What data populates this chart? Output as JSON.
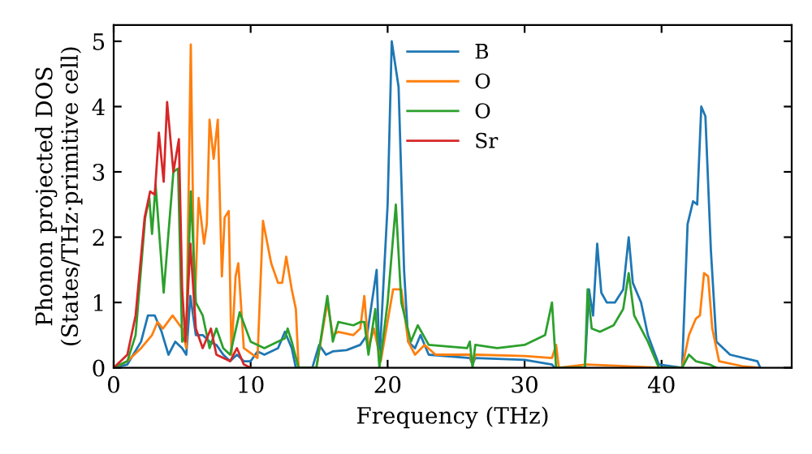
{
  "chart_data": {
    "type": "line",
    "xlabel": "Frequency (THz)",
    "ylabel": "Phonon projected DOS\n(States/THz·primitive cell)",
    "xlim": [
      0,
      49.5
    ],
    "ylim": [
      0,
      5.25
    ],
    "xticks": [
      0,
      10,
      20,
      30,
      40
    ],
    "yticks": [
      0,
      1,
      2,
      3,
      4,
      5
    ],
    "legend": "top",
    "grid": false,
    "marker": "none",
    "line_style": "solid",
    "series": [
      {
        "name": "B",
        "color": "#1f77b4",
        "x": [
          0,
          1,
          2,
          2.5,
          3,
          3.5,
          4,
          4.5,
          5,
          5.3,
          5.6,
          6,
          6.5,
          7,
          7.5,
          8,
          8.5,
          9,
          9.5,
          10,
          10.5,
          11,
          12,
          12.5,
          13,
          13.3,
          14.5,
          15,
          15.5,
          16,
          17,
          18,
          18.5,
          19.2,
          19.4,
          20,
          20.3,
          20.8,
          21.2,
          21.5,
          22,
          22.4,
          23,
          26,
          26.2,
          26.4,
          30,
          32,
          32.2,
          34.4,
          34.7,
          35.0,
          35.3,
          35.6,
          36,
          36.6,
          37.2,
          37.6,
          37.9,
          38.5,
          39,
          39.8,
          41.5,
          41.9,
          42.3,
          42.6,
          42.9,
          43.2,
          43.6,
          44,
          45,
          47,
          47.2
        ],
        "values": [
          0,
          0.05,
          0.4,
          0.8,
          0.8,
          0.55,
          0.2,
          0.4,
          0.3,
          0.2,
          1.1,
          0.5,
          0.5,
          0.4,
          0.35,
          0.2,
          0.1,
          0.2,
          0.1,
          0.1,
          0.25,
          0.2,
          0.3,
          0.55,
          0.3,
          0,
          0,
          0.35,
          0.2,
          0.25,
          0.27,
          0.35,
          0.5,
          1.5,
          0.1,
          2.5,
          5.0,
          4.3,
          1.5,
          0.4,
          0.3,
          0.5,
          0.2,
          0.15,
          0.05,
          0.15,
          0.12,
          0.05,
          0,
          0,
          1.2,
          0.8,
          1.9,
          1.15,
          1.0,
          1.0,
          1.2,
          2.0,
          1.3,
          1.0,
          0.5,
          0.05,
          0,
          2.2,
          2.55,
          2.5,
          4.0,
          3.85,
          1.8,
          0.4,
          0.2,
          0.1,
          0
        ]
      },
      {
        "name": "O",
        "color": "#ff7f0e",
        "x": [
          0,
          1,
          2,
          2.8,
          3.2,
          3.6,
          4.3,
          5.0,
          5.3,
          5.63,
          5.9,
          6.2,
          6.6,
          6.8,
          7.0,
          7.3,
          7.6,
          7.9,
          8.1,
          8.4,
          8.6,
          8.9,
          9.1,
          9.5,
          10.5,
          10.9,
          11.5,
          12.0,
          12.3,
          12.6,
          13.0,
          13.3,
          13.5,
          14.8,
          15.6,
          16,
          16.4,
          17.5,
          18.0,
          18.3,
          18.6,
          19.0,
          19.5,
          20.4,
          21,
          21.5,
          22,
          22.7,
          23.5,
          26,
          26.2,
          26.4,
          30,
          32,
          32.3,
          32.5,
          34.5,
          40,
          41.5,
          42,
          42.5,
          42.8,
          43.1,
          43.4,
          43.7,
          44.2,
          46,
          47
        ],
        "values": [
          0,
          0.1,
          0.3,
          0.5,
          0.7,
          0.6,
          0.8,
          0.6,
          0.3,
          4.95,
          0.8,
          2.6,
          1.9,
          2.2,
          3.8,
          3.2,
          3.8,
          1.4,
          2.3,
          2.4,
          0.2,
          1.4,
          1.6,
          0.3,
          0.15,
          2.25,
          1.6,
          1.3,
          1.3,
          1.7,
          1.2,
          0.9,
          0,
          0,
          1.0,
          0.5,
          0.55,
          0.5,
          0.6,
          1.1,
          0.3,
          0.6,
          0.1,
          1.2,
          1.2,
          0.4,
          0.2,
          0.35,
          0.2,
          0.2,
          0.05,
          0.2,
          0.18,
          0.15,
          0.35,
          0,
          0.05,
          0,
          0,
          0.5,
          0.75,
          0.8,
          1.45,
          1.4,
          0.6,
          0.1,
          0.02,
          0
        ]
      },
      {
        "name": "O",
        "color": "#2ca02c",
        "x": [
          0,
          1,
          1.6,
          2.3,
          2.6,
          2.8,
          3.06,
          3.65,
          4.36,
          4.7,
          5.0,
          5.3,
          5.63,
          6.0,
          6.5,
          7.0,
          7.5,
          8,
          8.5,
          9.2,
          10,
          11,
          12.5,
          12.7,
          13.0,
          13.5,
          14.8,
          15.6,
          16,
          16.4,
          17.5,
          18.0,
          18.3,
          18.6,
          19.1,
          19.4,
          20,
          20.6,
          21,
          21.7,
          22.2,
          23,
          25.8,
          26,
          26.2,
          26.4,
          28,
          30,
          31.5,
          32.0,
          32.3,
          34.4,
          34.6,
          34.9,
          35.5,
          36.5,
          37.2,
          37.6,
          38,
          39,
          39.8,
          41.5,
          42,
          42.5,
          43.5,
          44
        ],
        "values": [
          0,
          0.1,
          0.5,
          2.3,
          2.6,
          2.05,
          2.8,
          1.15,
          3.0,
          3.05,
          0.4,
          0.5,
          2.7,
          1.0,
          0.8,
          0.3,
          0.6,
          0.3,
          0.2,
          0.85,
          0.4,
          0.3,
          0.45,
          0.6,
          0.4,
          0,
          0,
          1.1,
          0.4,
          0.7,
          0.65,
          0.7,
          0.7,
          0.2,
          0.9,
          0,
          1.0,
          2.5,
          1.0,
          0.4,
          0.65,
          0.35,
          0.3,
          0.4,
          0,
          0.35,
          0.3,
          0.35,
          0.5,
          1.0,
          0,
          0,
          1.2,
          0.6,
          0.55,
          0.65,
          0.9,
          1.45,
          0.8,
          0.4,
          0,
          0,
          0.2,
          0.1,
          0.05,
          0
        ]
      },
      {
        "name": "Sr",
        "color": "#d62728",
        "x": [
          0,
          1,
          1.6,
          2.26,
          2.66,
          3.0,
          3.3,
          3.65,
          3.9,
          4.36,
          4.76,
          5.0,
          5.24,
          5.6,
          6.0,
          6.5,
          7.1,
          7.5,
          8.5,
          9,
          9.5,
          10
        ],
        "values": [
          0,
          0.2,
          0.8,
          2.3,
          2.7,
          2.65,
          3.6,
          2.85,
          4.07,
          3.0,
          3.5,
          1.2,
          0.4,
          1.9,
          0.6,
          0.3,
          0.6,
          0.2,
          0.1,
          0.3,
          0.05,
          0
        ]
      }
    ]
  }
}
